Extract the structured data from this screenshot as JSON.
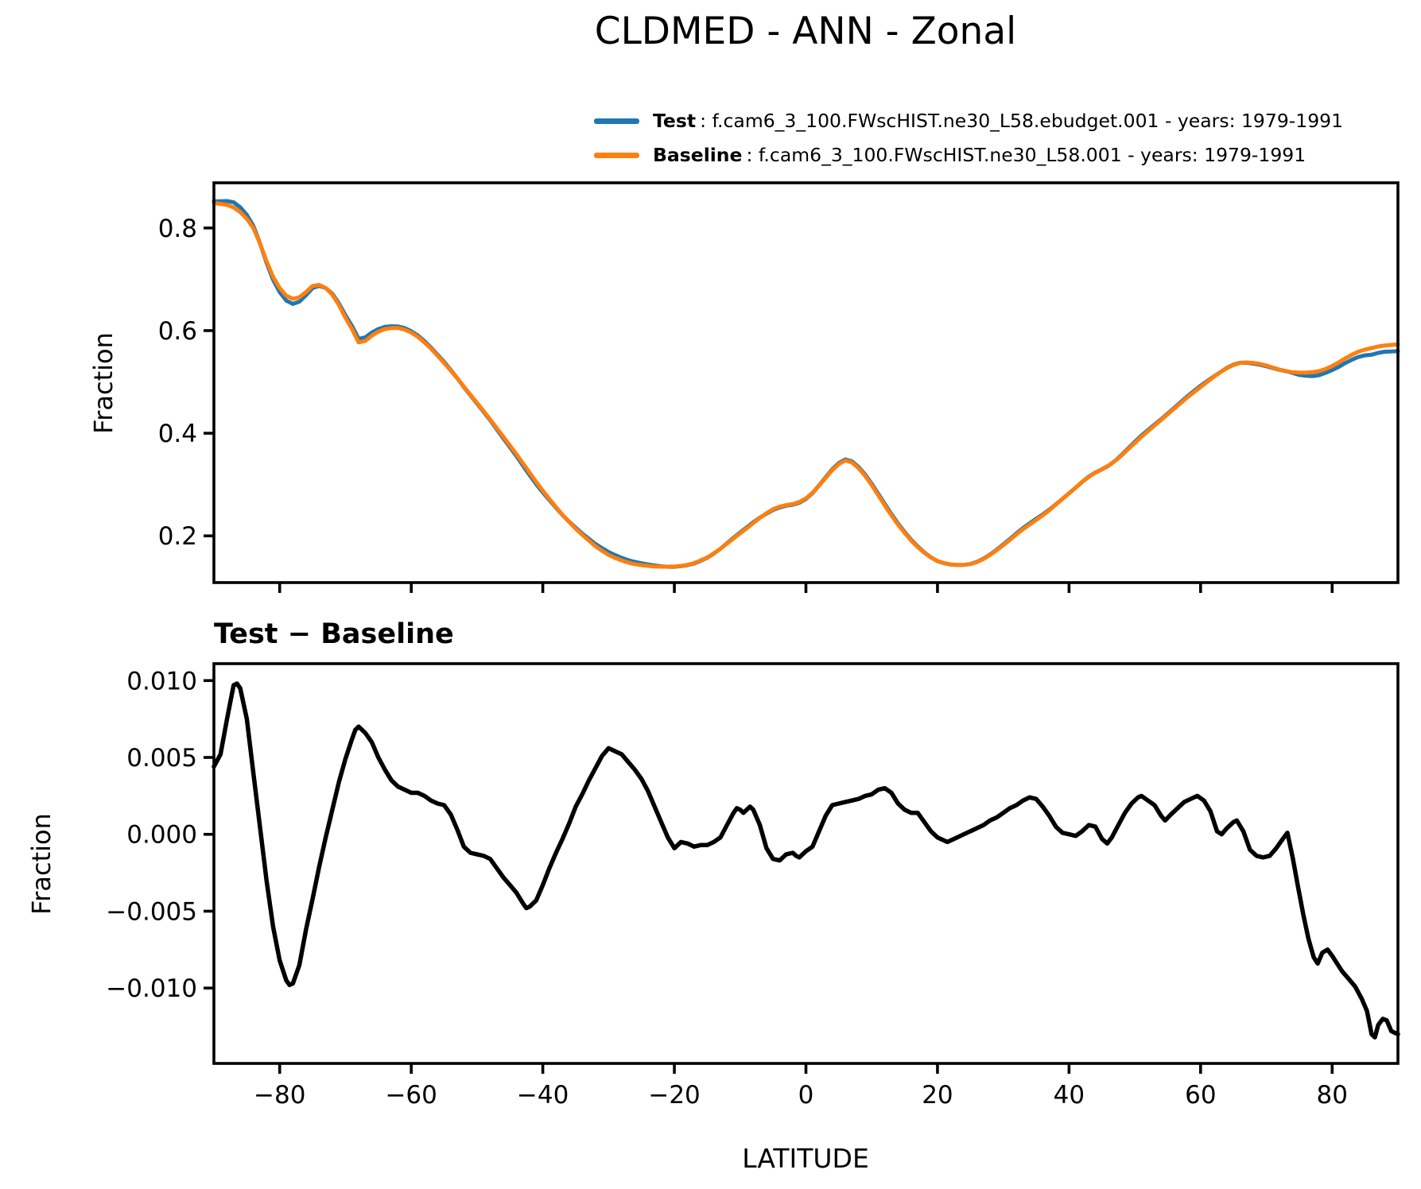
{
  "title": "CLDMED - ANN - Zonal",
  "xlabel": "LATITUDE",
  "diff_title": "Test − Baseline",
  "colors": {
    "test": "#1f77b4",
    "baseline": "#ff7f0e",
    "diff": "#000000",
    "axis": "#000000"
  },
  "legend": {
    "items": [
      {
        "name": "Test",
        "desc": ": f.cam6_3_100.FWscHIST.ne30_L58.ebudget.001 - years: 1979-1991",
        "color": "#1f77b4"
      },
      {
        "name": "Baseline",
        "desc": ": f.cam6_3_100.FWscHIST.ne30_L58.001 - years: 1979-1991",
        "color": "#ff7f0e"
      }
    ]
  },
  "chart_data": [
    {
      "type": "line",
      "panel": "zonal-mean",
      "title": "CLDMED - ANN - Zonal",
      "xlabel": "",
      "ylabel": "Fraction",
      "xlim": [
        -90,
        90
      ],
      "ylim": [
        0.109,
        0.888
      ],
      "xticks": [
        -80,
        -60,
        -40,
        -20,
        0,
        20,
        40,
        60,
        80
      ],
      "xtick_labels": null,
      "yticks": [
        0.2,
        0.4,
        0.6,
        0.8
      ],
      "ytick_labels": [
        "0.2",
        "0.4",
        "0.6",
        "0.8"
      ],
      "grid": false,
      "legend_position": "upper right, above axes",
      "x": [
        -90,
        -89,
        -88,
        -87,
        -86,
        -85,
        -84,
        -83,
        -82,
        -81,
        -80,
        -79,
        -78,
        -77,
        -76,
        -75,
        -74,
        -73,
        -72,
        -71,
        -70,
        -69,
        -68,
        -67,
        -66,
        -65,
        -64,
        -63,
        -62,
        -61,
        -60,
        -59,
        -58,
        -57,
        -56,
        -55,
        -54,
        -53,
        -52,
        -51,
        -50,
        -49,
        -48,
        -47,
        -46,
        -45,
        -44,
        -43,
        -42,
        -41,
        -40,
        -39,
        -38,
        -37,
        -36,
        -35,
        -34,
        -33,
        -32,
        -31,
        -30,
        -29,
        -28,
        -27,
        -26,
        -25,
        -24,
        -23,
        -22,
        -21,
        -20,
        -19,
        -18,
        -17,
        -16,
        -15,
        -14,
        -13,
        -12,
        -11,
        -10,
        -9,
        -8,
        -7,
        -6,
        -5,
        -4,
        -3,
        -2,
        -1,
        0,
        1,
        2,
        3,
        4,
        5,
        6,
        7,
        8,
        9,
        10,
        11,
        12,
        13,
        14,
        15,
        16,
        17,
        18,
        19,
        20,
        21,
        22,
        23,
        24,
        25,
        26,
        27,
        28,
        29,
        30,
        31,
        32,
        33,
        34,
        35,
        36,
        37,
        38,
        39,
        40,
        41,
        42,
        43,
        44,
        45,
        46,
        47,
        48,
        49,
        50,
        51,
        52,
        53,
        54,
        55,
        56,
        57,
        58,
        59,
        60,
        61,
        62,
        63,
        64,
        65,
        66,
        67,
        68,
        69,
        70,
        71,
        72,
        73,
        74,
        75,
        76,
        77,
        78,
        79,
        80,
        81,
        82,
        83,
        84,
        85,
        86,
        87,
        88,
        89,
        90
      ],
      "series": [
        {
          "name": "Test",
          "color": "#1f77b4",
          "linewidth": 5,
          "y": [
            0.852,
            0.852,
            0.8525,
            0.85,
            0.8405,
            0.8255,
            0.804,
            0.7705,
            0.732,
            0.699,
            0.675,
            0.6585,
            0.652,
            0.6565,
            0.669,
            0.683,
            0.687,
            0.683,
            0.672,
            0.653,
            0.63,
            0.609,
            0.584,
            0.5866,
            0.596,
            0.603,
            0.6072,
            0.6085,
            0.608,
            0.605,
            0.5987,
            0.5907,
            0.5795,
            0.567,
            0.553,
            0.539,
            0.5233,
            0.5073,
            0.4902,
            0.4738,
            0.4577,
            0.4416,
            0.4254,
            0.4078,
            0.39,
            0.3727,
            0.3552,
            0.3365,
            0.3183,
            0.3007,
            0.2847,
            0.2698,
            0.2548,
            0.2407,
            0.2277,
            0.2158,
            0.2046,
            0.1945,
            0.1843,
            0.1761,
            0.1686,
            0.1624,
            0.1572,
            0.1527,
            0.1492,
            0.1466,
            0.1443,
            0.1423,
            0.1408,
            0.1398,
            0.1396,
            0.141,
            0.1429,
            0.1462,
            0.1513,
            0.1573,
            0.1655,
            0.1748,
            0.1856,
            0.1964,
            0.2066,
            0.2166,
            0.2266,
            0.2356,
            0.2431,
            0.2504,
            0.2553,
            0.2587,
            0.2608,
            0.2645,
            0.2719,
            0.2832,
            0.2982,
            0.3142,
            0.3299,
            0.342,
            0.3491,
            0.3452,
            0.3343,
            0.3195,
            0.3016,
            0.2819,
            0.262,
            0.2427,
            0.224,
            0.2076,
            0.1924,
            0.1794,
            0.1678,
            0.1582,
            0.1508,
            0.1466,
            0.1441,
            0.1433,
            0.1435,
            0.1452,
            0.1494,
            0.1556,
            0.1639,
            0.1731,
            0.1834,
            0.1937,
            0.2049,
            0.2152,
            0.2244,
            0.2333,
            0.2418,
            0.2512,
            0.2615,
            0.2721,
            0.283,
            0.2939,
            0.3052,
            0.3156,
            0.3235,
            0.3297,
            0.3366,
            0.3463,
            0.3581,
            0.3708,
            0.3833,
            0.3955,
            0.4062,
            0.4169,
            0.4272,
            0.4384,
            0.4496,
            0.461,
            0.4722,
            0.4825,
            0.4924,
            0.5017,
            0.5106,
            0.519,
            0.5274,
            0.5338,
            0.5374,
            0.5372,
            0.5357,
            0.5335,
            0.5306,
            0.527,
            0.5236,
            0.521,
            0.5175,
            0.5135,
            0.512,
            0.5112,
            0.513,
            0.5175,
            0.5231,
            0.5293,
            0.5368,
            0.5433,
            0.5487,
            0.5517,
            0.553,
            0.5566,
            0.5589,
            0.5592,
            0.56
          ]
        },
        {
          "name": "Baseline",
          "color": "#ff7f0e",
          "linewidth": 5,
          "y": [
            0.848,
            0.847,
            0.845,
            0.84,
            0.831,
            0.818,
            0.8,
            0.77,
            0.735,
            0.705,
            0.683,
            0.668,
            0.662,
            0.665,
            0.675,
            0.687,
            0.689,
            0.683,
            0.67,
            0.65,
            0.625,
            0.603,
            0.577,
            0.58,
            0.59,
            0.598,
            0.603,
            0.605,
            0.605,
            0.602,
            0.596,
            0.588,
            0.577,
            0.565,
            0.551,
            0.537,
            0.522,
            0.507,
            0.491,
            0.475,
            0.459,
            0.443,
            0.427,
            0.41,
            0.393,
            0.376,
            0.359,
            0.341,
            0.323,
            0.305,
            0.288,
            0.272,
            0.256,
            0.241,
            0.227,
            0.214,
            0.202,
            0.191,
            0.18,
            0.171,
            0.163,
            0.157,
            0.152,
            0.148,
            0.145,
            0.143,
            0.1415,
            0.1405,
            0.14,
            0.14,
            0.1405,
            0.1415,
            0.1435,
            0.147,
            0.152,
            0.158,
            0.166,
            0.175,
            0.185,
            0.195,
            0.205,
            0.215,
            0.225,
            0.235,
            0.244,
            0.252,
            0.257,
            0.26,
            0.262,
            0.266,
            0.273,
            0.284,
            0.298,
            0.313,
            0.328,
            0.34,
            0.347,
            0.343,
            0.332,
            0.317,
            0.299,
            0.279,
            0.259,
            0.24,
            0.222,
            0.206,
            0.191,
            0.178,
            0.167,
            0.158,
            0.151,
            0.147,
            0.1445,
            0.1435,
            0.1435,
            0.145,
            0.149,
            0.155,
            0.163,
            0.172,
            0.182,
            0.192,
            0.203,
            0.213,
            0.222,
            0.231,
            0.24,
            0.25,
            0.261,
            0.272,
            0.283,
            0.294,
            0.305,
            0.315,
            0.323,
            0.33,
            0.337,
            0.346,
            0.357,
            0.369,
            0.381,
            0.393,
            0.404,
            0.415,
            0.426,
            0.437,
            0.448,
            0.459,
            0.47,
            0.48,
            0.49,
            0.5,
            0.51,
            0.519,
            0.527,
            0.533,
            0.537,
            0.538,
            0.537,
            0.535,
            0.532,
            0.528,
            0.524,
            0.521,
            0.519,
            0.518,
            0.518,
            0.519,
            0.521,
            0.525,
            0.531,
            0.538,
            0.546,
            0.553,
            0.559,
            0.563,
            0.566,
            0.569,
            0.571,
            0.572,
            0.573
          ]
        }
      ]
    },
    {
      "type": "line",
      "panel": "difference",
      "title": "Test − Baseline",
      "xlabel": "LATITUDE",
      "ylabel": "Fraction",
      "xlim": [
        -90,
        90
      ],
      "ylim": [
        -0.0149,
        0.0111
      ],
      "xticks": [
        -80,
        -60,
        -40,
        -20,
        0,
        20,
        40,
        60,
        80
      ],
      "xtick_labels": [
        "−80",
        "−60",
        "−40",
        "−20",
        "0",
        "20",
        "40",
        "60",
        "80"
      ],
      "yticks": [
        0.01,
        0.005,
        0.0,
        -0.005,
        -0.01
      ],
      "ytick_labels": [
        "0.010",
        "0.005",
        "0.000",
        "−0.005",
        "−0.010"
      ],
      "grid": false,
      "x": [
        -90,
        -89,
        -88,
        -87,
        -86.5,
        -86,
        -85,
        -84,
        -83,
        -82,
        -81,
        -80,
        -79,
        -78.5,
        -78,
        -77,
        -76,
        -75,
        -74,
        -73,
        -72,
        -71,
        -70,
        -69,
        -68.5,
        -68,
        -67,
        -66,
        -65,
        -64,
        -63,
        -62,
        -61,
        -60,
        -59,
        -58,
        -57,
        -56,
        -55,
        -54,
        -53,
        -52,
        -51,
        -50,
        -49,
        -48,
        -47,
        -46,
        -45,
        -44,
        -43,
        -42.5,
        -42,
        -41,
        -40,
        -39,
        -38,
        -37,
        -36,
        -35,
        -34,
        -33,
        -32,
        -31,
        -30,
        -29,
        -28,
        -27,
        -26,
        -25,
        -24,
        -23,
        -22,
        -21,
        -20,
        -19,
        -18,
        -17,
        -16,
        -15,
        -14,
        -13,
        -12,
        -11,
        -10.5,
        -10,
        -9.5,
        -8.5,
        -8,
        -7,
        -6,
        -5,
        -4,
        -3,
        -2,
        -1.5,
        -1,
        0,
        1,
        2,
        3,
        4,
        5,
        6,
        7,
        8,
        9,
        10,
        11,
        12,
        13,
        14,
        15,
        16,
        17,
        18,
        19,
        20,
        21,
        21.5,
        22,
        23,
        24,
        25,
        26,
        27,
        28,
        29,
        30,
        31,
        32,
        33,
        34,
        35,
        36,
        37,
        38,
        39,
        40,
        41,
        42,
        43,
        44,
        45,
        45.8,
        46.5,
        47.5,
        48.5,
        49.5,
        50.5,
        51,
        52,
        53,
        54,
        54.6,
        55.5,
        56.5,
        57.5,
        58.5,
        59.5,
        60.5,
        61.5,
        62.5,
        63.2,
        64,
        65,
        65.5,
        66.5,
        67.5,
        68.5,
        69.5,
        70.5,
        71.5,
        72.5,
        73.2,
        74,
        74.8,
        75.6,
        76.4,
        77.2,
        77.8,
        78.5,
        79.3,
        80,
        80.6,
        81.5,
        82.5,
        83.5,
        84.5,
        85.3,
        86,
        86.5,
        87,
        87.7,
        88.3,
        89,
        90
      ],
      "series": [
        {
          "name": "Test - Baseline",
          "color": "#000000",
          "linewidth": 5.5,
          "y": [
            0.0044,
            0.0052,
            0.0075,
            0.0097,
            0.0098,
            0.0095,
            0.0075,
            0.004,
            0.0005,
            -0.003,
            -0.006,
            -0.0082,
            -0.0095,
            -0.0098,
            -0.0097,
            -0.0085,
            -0.0062,
            -0.0042,
            -0.0021,
            -0.0002,
            0.0016,
            0.0034,
            0.0049,
            0.0062,
            0.0068,
            0.007,
            0.0066,
            0.006,
            0.005,
            0.0042,
            0.0035,
            0.0031,
            0.0029,
            0.0027,
            0.0027,
            0.0025,
            0.0022,
            0.002,
            0.0019,
            0.0013,
            0.0003,
            -0.0008,
            -0.0012,
            -0.0013,
            -0.0014,
            -0.0016,
            -0.0022,
            -0.0028,
            -0.0033,
            -0.0038,
            -0.0045,
            -0.0048,
            -0.0047,
            -0.0043,
            -0.0033,
            -0.0022,
            -0.0012,
            -0.0003,
            0.0007,
            0.0018,
            0.0026,
            0.0035,
            0.0043,
            0.0051,
            0.0056,
            0.0054,
            0.0052,
            0.0047,
            0.0042,
            0.0036,
            0.0028,
            0.0018,
            0.0008,
            -0.0002,
            -0.0009,
            -0.0005,
            -0.0006,
            -0.0008,
            -0.0007,
            -0.0007,
            -0.0005,
            -0.0002,
            0.0006,
            0.0014,
            0.0017,
            0.0016,
            0.0014,
            0.0018,
            0.0016,
            0.0006,
            -0.0009,
            -0.0016,
            -0.0017,
            -0.0013,
            -0.0012,
            -0.0014,
            -0.0015,
            -0.0011,
            -0.0008,
            0.0002,
            0.0012,
            0.0019,
            0.002,
            0.0021,
            0.0022,
            0.0023,
            0.0025,
            0.0026,
            0.0029,
            0.003,
            0.0027,
            0.002,
            0.0016,
            0.0014,
            0.0014,
            0.0008,
            0.0002,
            -0.0002,
            -0.0004,
            -0.0005,
            -0.0004,
            -0.0002,
            0,
            0.0002,
            0.0004,
            0.0006,
            0.0009,
            0.0011,
            0.0014,
            0.0017,
            0.0019,
            0.0022,
            0.0024,
            0.0023,
            0.0018,
            0.0012,
            0.0005,
            0.0001,
            0,
            -0.0001,
            0.0002,
            0.0006,
            0.0005,
            -0.0003,
            -0.0006,
            -0.0002,
            0.0006,
            0.0014,
            0.002,
            0.0024,
            0.0025,
            0.0022,
            0.0019,
            0.0012,
            0.0009,
            0.0013,
            0.0017,
            0.0021,
            0.0023,
            0.0025,
            0.0022,
            0.0015,
            0.0002,
            0,
            0.0004,
            0.0008,
            0.0009,
            0.0002,
            -0.001,
            -0.0014,
            -0.0015,
            -0.0014,
            -0.0009,
            -0.0003,
            0.0001,
            -0.0015,
            -0.0034,
            -0.0052,
            -0.0068,
            -0.008,
            -0.0084,
            -0.0077,
            -0.0075,
            -0.0079,
            -0.0083,
            -0.0089,
            -0.0094,
            -0.0099,
            -0.0107,
            -0.0115,
            -0.013,
            -0.0132,
            -0.0124,
            -0.012,
            -0.0121,
            -0.0128,
            -0.013
          ]
        }
      ]
    }
  ]
}
